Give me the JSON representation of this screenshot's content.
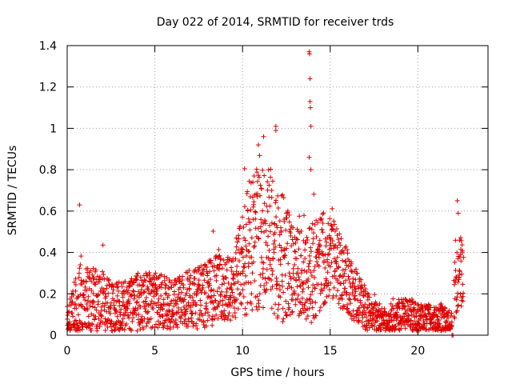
{
  "chart_data": {
    "type": "scatter",
    "title": "Day 022 of 2014, SRMTID for receiver trds",
    "xlabel": "GPS time / hours",
    "ylabel": "SRMTID / TECUs",
    "xlim": [
      0,
      24
    ],
    "ylim": [
      0,
      1.4
    ],
    "xticks": [
      0,
      5,
      10,
      15,
      20
    ],
    "yticks": [
      0,
      0.2,
      0.4,
      0.6,
      0.8,
      1,
      1.2,
      1.4
    ],
    "xtick_labels": [
      "0",
      "5",
      "10",
      "15",
      "20"
    ],
    "ytick_labels": [
      "0",
      "0.2",
      "0.4",
      "0.6",
      "0.8",
      "1",
      "1.2",
      "1.4"
    ],
    "grid": true,
    "marker": "+",
    "series": [
      {
        "name": "SRMTID",
        "color": "#e00000",
        "profile": [
          [
            0.0,
            0.05,
            0.12
          ],
          [
            0.25,
            0.06,
            0.2
          ],
          [
            0.5,
            0.08,
            0.28
          ],
          [
            0.75,
            0.12,
            0.3
          ],
          [
            1.0,
            0.16,
            0.22
          ],
          [
            1.5,
            0.17,
            0.22
          ],
          [
            2.0,
            0.16,
            0.2
          ],
          [
            2.5,
            0.13,
            0.18
          ],
          [
            3.0,
            0.12,
            0.18
          ],
          [
            3.5,
            0.14,
            0.18
          ],
          [
            4.0,
            0.15,
            0.2
          ],
          [
            4.5,
            0.17,
            0.18
          ],
          [
            5.0,
            0.17,
            0.18
          ],
          [
            5.5,
            0.16,
            0.18
          ],
          [
            6.0,
            0.15,
            0.16
          ],
          [
            6.5,
            0.17,
            0.18
          ],
          [
            7.0,
            0.17,
            0.18
          ],
          [
            7.5,
            0.18,
            0.2
          ],
          [
            8.0,
            0.2,
            0.22
          ],
          [
            8.5,
            0.22,
            0.22
          ],
          [
            9.0,
            0.23,
            0.22
          ],
          [
            9.5,
            0.22,
            0.2
          ],
          [
            10.0,
            0.35,
            0.35
          ],
          [
            10.5,
            0.45,
            0.45
          ],
          [
            11.0,
            0.5,
            0.5
          ],
          [
            11.5,
            0.45,
            0.5
          ],
          [
            12.0,
            0.4,
            0.45
          ],
          [
            12.5,
            0.35,
            0.38
          ],
          [
            13.0,
            0.3,
            0.3
          ],
          [
            13.5,
            0.3,
            0.3
          ],
          [
            14.0,
            0.32,
            0.35
          ],
          [
            14.5,
            0.35,
            0.3
          ],
          [
            15.0,
            0.38,
            0.28
          ],
          [
            15.5,
            0.33,
            0.25
          ],
          [
            16.0,
            0.25,
            0.22
          ],
          [
            16.5,
            0.2,
            0.18
          ],
          [
            17.0,
            0.12,
            0.14
          ],
          [
            17.5,
            0.09,
            0.1
          ],
          [
            18.0,
            0.07,
            0.08
          ],
          [
            18.5,
            0.07,
            0.08
          ],
          [
            19.0,
            0.1,
            0.1
          ],
          [
            19.5,
            0.1,
            0.1
          ],
          [
            20.0,
            0.08,
            0.1
          ],
          [
            20.5,
            0.08,
            0.1
          ],
          [
            21.0,
            0.06,
            0.1
          ],
          [
            21.5,
            0.07,
            0.1
          ],
          [
            21.9,
            0.06,
            0.05
          ],
          [
            22.1,
            0.2,
            0.2
          ],
          [
            22.4,
            0.3,
            0.25
          ],
          [
            22.6,
            0.28,
            0.2
          ]
        ],
        "gaps": [
          [
            21.95,
            22.05
          ]
        ],
        "highlights": [
          {
            "x": 0.7,
            "y": 0.63
          },
          {
            "x": 10.9,
            "y": 0.92
          },
          {
            "x": 11.2,
            "y": 0.96
          },
          {
            "x": 11.9,
            "y": 1.01
          },
          {
            "x": 11.9,
            "y": 0.99
          },
          {
            "x": 13.8,
            "y": 1.37
          },
          {
            "x": 13.82,
            "y": 1.36
          },
          {
            "x": 13.85,
            "y": 1.24
          },
          {
            "x": 13.85,
            "y": 1.13
          },
          {
            "x": 13.87,
            "y": 1.1
          },
          {
            "x": 13.9,
            "y": 1.01
          },
          {
            "x": 13.8,
            "y": 0.86
          },
          {
            "x": 13.9,
            "y": 0.8
          },
          {
            "x": 22.25,
            "y": 0.65
          },
          {
            "x": 22.3,
            "y": 0.59
          },
          {
            "x": 21.95,
            "y": 0.0
          },
          {
            "x": 22.0,
            "y": 0.0
          }
        ]
      }
    ]
  }
}
